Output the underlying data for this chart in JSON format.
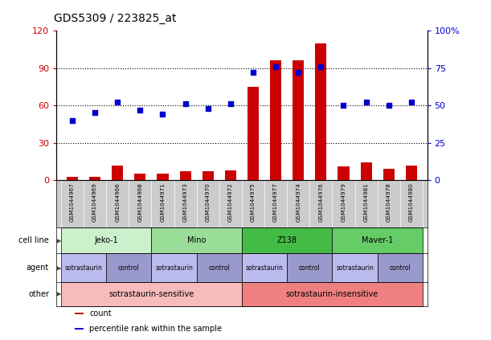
{
  "title": "GDS5309 / 223825_at",
  "samples": [
    "GSM1044967",
    "GSM1044969",
    "GSM1044966",
    "GSM1044968",
    "GSM1044971",
    "GSM1044973",
    "GSM1044970",
    "GSM1044972",
    "GSM1044975",
    "GSM1044977",
    "GSM1044974",
    "GSM1044976",
    "GSM1044979",
    "GSM1044981",
    "GSM1044978",
    "GSM1044980"
  ],
  "counts": [
    3,
    3,
    12,
    5,
    5,
    7,
    7,
    8,
    75,
    96,
    96,
    110,
    11,
    14,
    9,
    12
  ],
  "percentiles": [
    40,
    45,
    52,
    47,
    44,
    51,
    48,
    51,
    72,
    76,
    72,
    76,
    50,
    52,
    50,
    52
  ],
  "bar_color": "#cc0000",
  "dot_color": "#0000cc",
  "cell_lines": [
    {
      "label": "Jeko-1",
      "start": 0,
      "end": 4,
      "color": "#ccf0cc"
    },
    {
      "label": "Mino",
      "start": 4,
      "end": 8,
      "color": "#99dd99"
    },
    {
      "label": "Z138",
      "start": 8,
      "end": 12,
      "color": "#44bb44"
    },
    {
      "label": "Maver-1",
      "start": 12,
      "end": 16,
      "color": "#66cc66"
    }
  ],
  "agents": [
    {
      "label": "sotrastaurin",
      "start": 0,
      "end": 2,
      "color": "#bbbbee"
    },
    {
      "label": "control",
      "start": 2,
      "end": 4,
      "color": "#9999cc"
    },
    {
      "label": "sotrastaurin",
      "start": 4,
      "end": 6,
      "color": "#bbbbee"
    },
    {
      "label": "control",
      "start": 6,
      "end": 8,
      "color": "#9999cc"
    },
    {
      "label": "sotrastaurin",
      "start": 8,
      "end": 10,
      "color": "#bbbbee"
    },
    {
      "label": "control",
      "start": 10,
      "end": 12,
      "color": "#9999cc"
    },
    {
      "label": "sotrastaurin",
      "start": 12,
      "end": 14,
      "color": "#bbbbee"
    },
    {
      "label": "control",
      "start": 14,
      "end": 16,
      "color": "#9999cc"
    }
  ],
  "others": [
    {
      "label": "sotrastaurin-sensitive",
      "start": 0,
      "end": 8,
      "color": "#f8bbbb"
    },
    {
      "label": "sotrastaurin-insensitive",
      "start": 8,
      "end": 16,
      "color": "#f08080"
    }
  ],
  "ylim_left": [
    0,
    120
  ],
  "ylim_right": [
    0,
    100
  ],
  "yticks_left": [
    0,
    30,
    60,
    90,
    120
  ],
  "yticks_right": [
    0,
    25,
    50,
    75,
    100
  ],
  "ytick_labels_left": [
    "0",
    "30",
    "60",
    "90",
    "120"
  ],
  "ytick_labels_right": [
    "0",
    "25",
    "50",
    "75",
    "100%"
  ],
  "row_labels": [
    "cell line",
    "agent",
    "other"
  ],
  "legend_count_label": "count",
  "legend_percentile_label": "percentile rank within the sample",
  "xticklabel_bg": "#cccccc",
  "plot_bg": "#ffffff"
}
